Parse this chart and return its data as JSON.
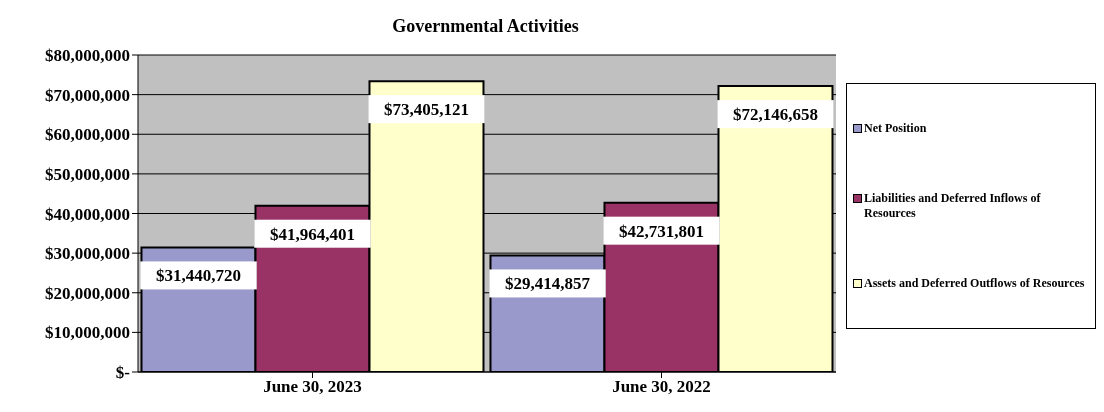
{
  "chart_data": {
    "type": "bar",
    "title": "Governmental Activities",
    "categories": [
      "June 30, 2023",
      "June 30, 2022"
    ],
    "series": [
      {
        "name": "Net Position",
        "color": "#9999cc",
        "values": [
          31440720,
          29414857
        ],
        "value_labels": [
          "$31,440,720",
          "$29,414,857"
        ]
      },
      {
        "name": "Liabilities and Deferred Inflows of Resources",
        "color": "#993366",
        "values": [
          41964401,
          42731801
        ],
        "value_labels": [
          "$41,964,401",
          "$42,731,801"
        ]
      },
      {
        "name": "Assets and Deferred Outflows of Resources",
        "color": "#ffffcc",
        "values": [
          73405121,
          72146658
        ],
        "value_labels": [
          "$73,405,121",
          "$72,146,658"
        ]
      }
    ],
    "ylim": [
      0,
      80000000
    ],
    "yticks": [
      {
        "value": 0,
        "label": "$-"
      },
      {
        "value": 10000000,
        "label": "$10,000,000"
      },
      {
        "value": 20000000,
        "label": "$20,000,000"
      },
      {
        "value": 30000000,
        "label": "$30,000,000"
      },
      {
        "value": 40000000,
        "label": "$40,000,000"
      },
      {
        "value": 50000000,
        "label": "$50,000,000"
      },
      {
        "value": 60000000,
        "label": "$60,000,000"
      },
      {
        "value": 70000000,
        "label": "$70,000,000"
      },
      {
        "value": 80000000,
        "label": "$80,000,000"
      }
    ],
    "grid": "y",
    "legend": "right"
  }
}
